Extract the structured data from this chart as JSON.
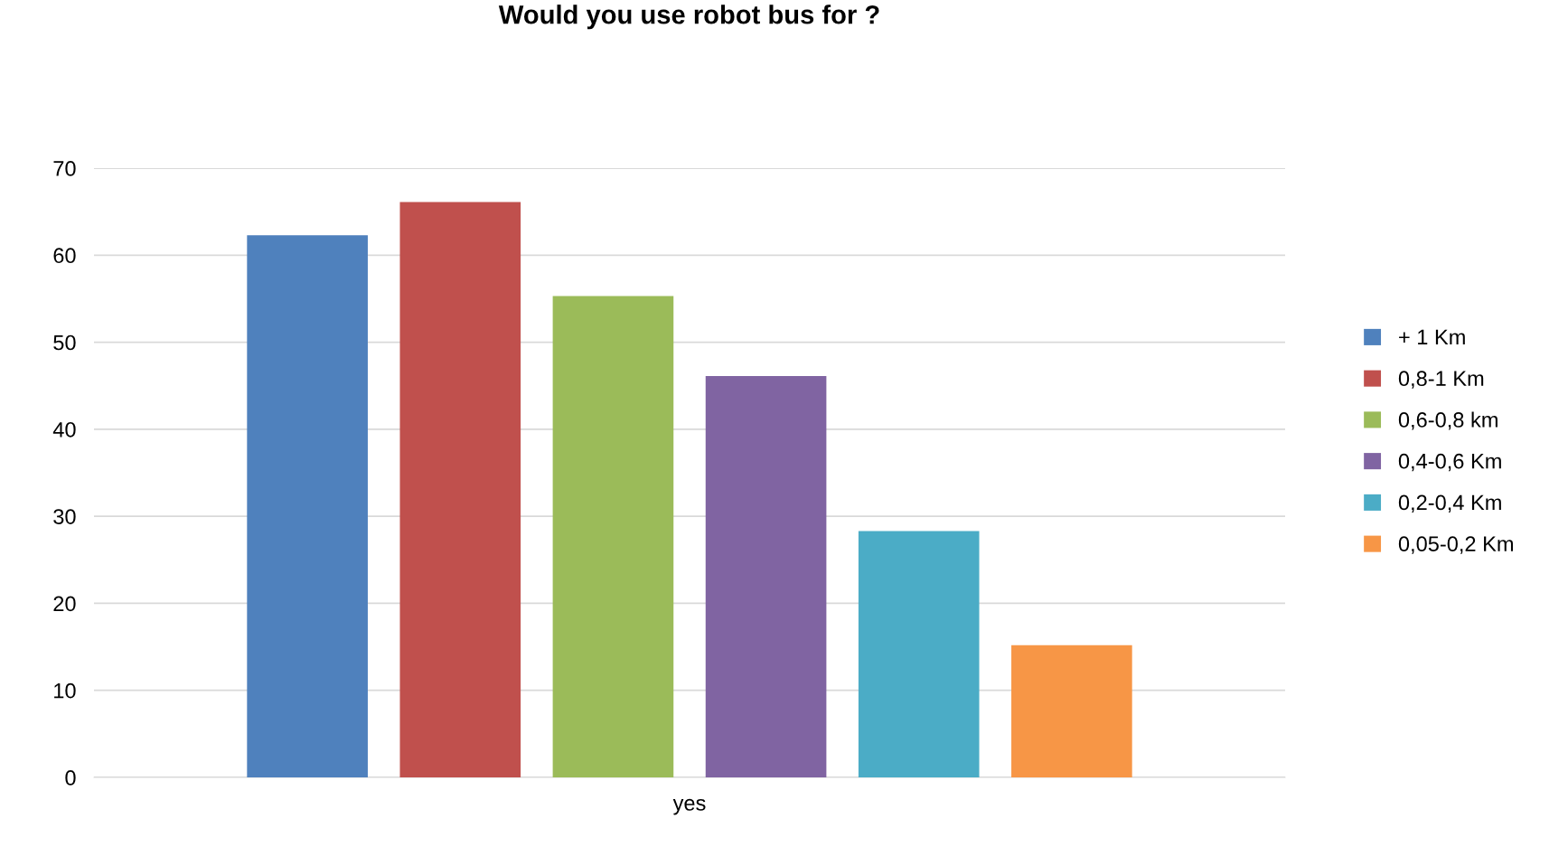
{
  "chart_data": {
    "type": "bar",
    "title": "Would you use robot bus for ?",
    "categories": [
      "yes"
    ],
    "series": [
      {
        "name": "+ 1 Km",
        "color": "#4f81bd",
        "values": [
          62.3
        ]
      },
      {
        "name": "0,8-1 Km",
        "color": "#c0504d",
        "values": [
          66.1
        ]
      },
      {
        "name": "0,6-0,8 km",
        "color": "#9bbb59",
        "values": [
          55.3
        ]
      },
      {
        "name": "0,4-0,6 Km",
        "color": "#8064a2",
        "values": [
          46.1
        ]
      },
      {
        "name": "0,2-0,4 Km",
        "color": "#4bacc6",
        "values": [
          28.3
        ]
      },
      {
        "name": "0,05-0,2 Km",
        "color": "#f79646",
        "values": [
          15.2
        ]
      }
    ],
    "ylim": [
      0,
      70
    ],
    "yticks": [
      0,
      10,
      20,
      30,
      40,
      50,
      60,
      70
    ],
    "grid": "y",
    "legend": "right"
  }
}
